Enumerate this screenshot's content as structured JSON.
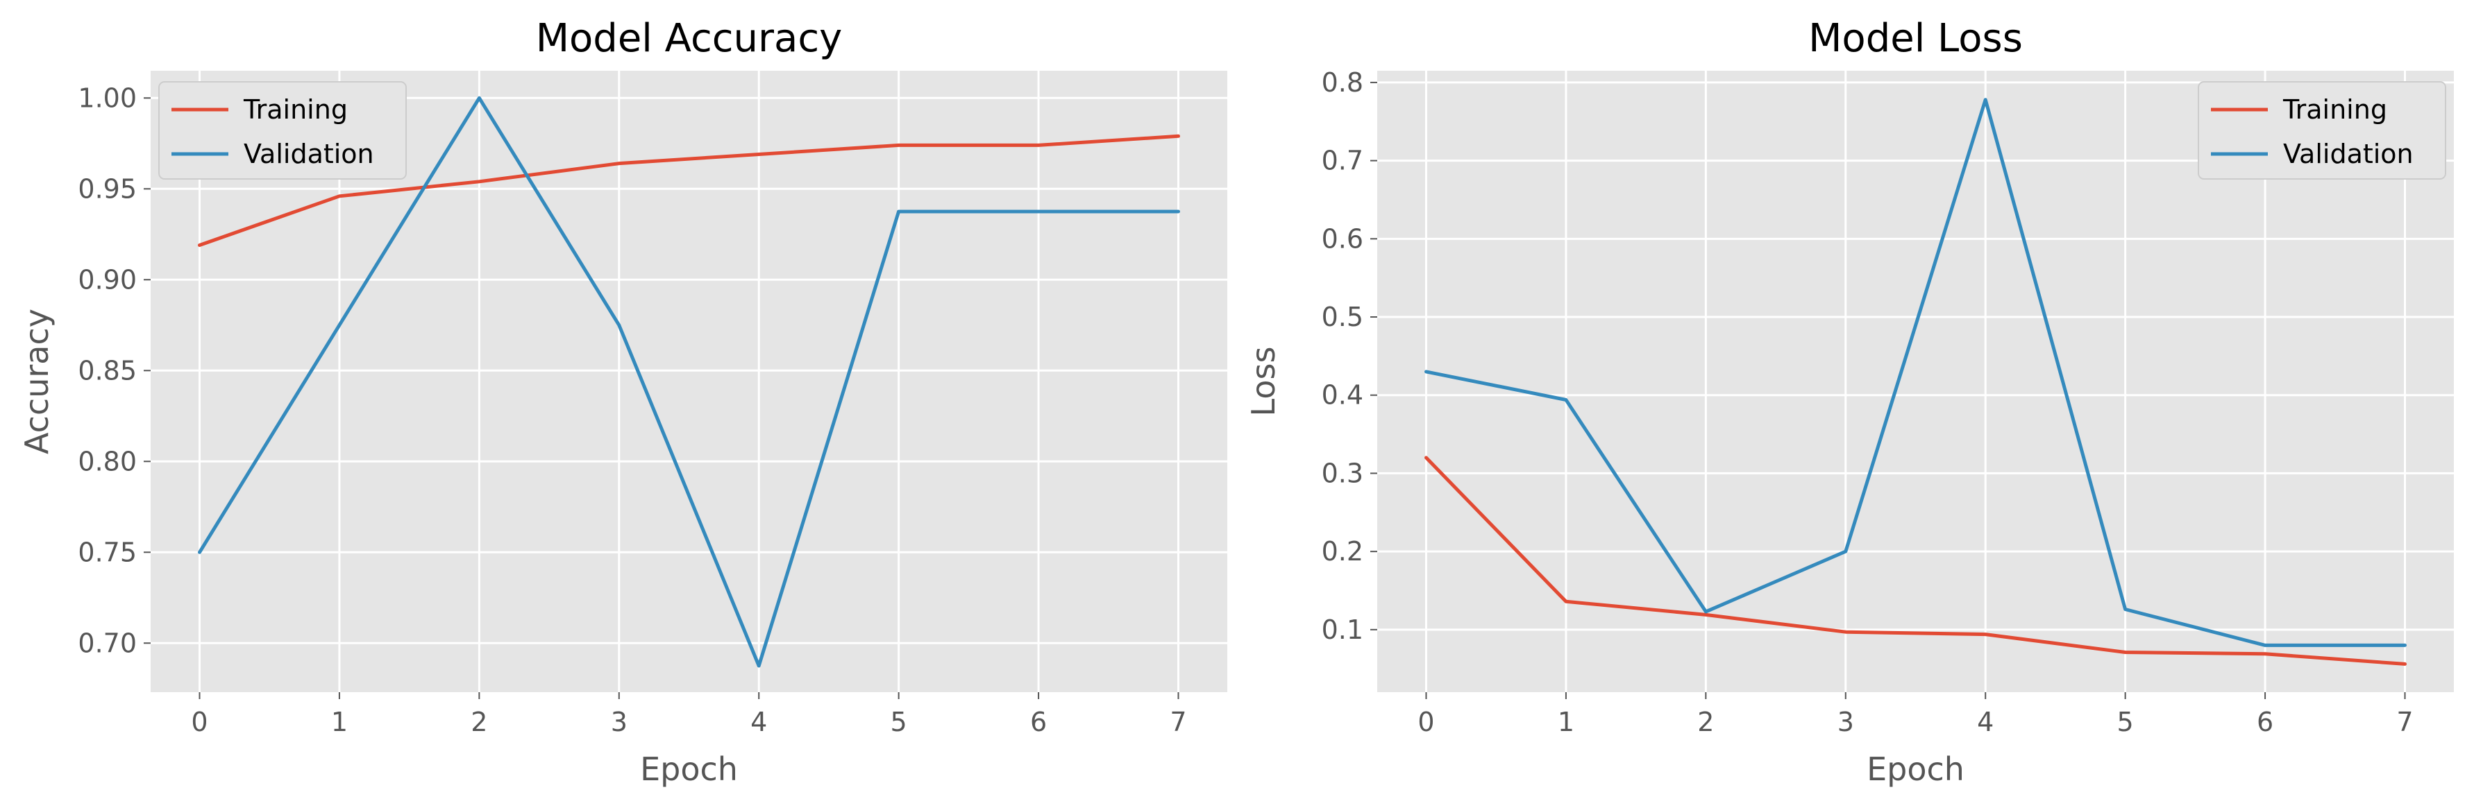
{
  "chart_data": [
    {
      "type": "line",
      "title": "Model Accuracy",
      "xlabel": "Epoch",
      "ylabel": "Accuracy",
      "x": [
        0,
        1,
        2,
        3,
        4,
        5,
        6,
        7
      ],
      "xticks": [
        "0",
        "1",
        "2",
        "3",
        "4",
        "5",
        "6",
        "7"
      ],
      "xlim": [
        -0.35,
        7.35
      ],
      "ylim": [
        0.673,
        1.015
      ],
      "yticks": [
        "0.70",
        "0.75",
        "0.80",
        "0.85",
        "0.90",
        "0.95",
        "1.00"
      ],
      "grid": true,
      "legend_position": "top-left",
      "series": [
        {
          "name": "Training",
          "color": "#e24a33",
          "values": [
            0.919,
            0.946,
            0.954,
            0.964,
            0.969,
            0.974,
            0.974,
            0.979
          ]
        },
        {
          "name": "Validation",
          "color": "#348abd",
          "values": [
            0.75,
            0.875,
            1.0,
            0.875,
            0.6875,
            0.9375,
            0.9375,
            0.9375
          ]
        }
      ]
    },
    {
      "type": "line",
      "title": "Model Loss",
      "xlabel": "Epoch",
      "ylabel": "Loss",
      "x": [
        0,
        1,
        2,
        3,
        4,
        5,
        6,
        7
      ],
      "xticks": [
        "0",
        "1",
        "2",
        "3",
        "4",
        "5",
        "6",
        "7"
      ],
      "xlim": [
        -0.35,
        7.35
      ],
      "ylim": [
        0.02,
        0.815
      ],
      "yticks": [
        "0.1",
        "0.2",
        "0.3",
        "0.4",
        "0.5",
        "0.6",
        "0.7",
        "0.8"
      ],
      "grid": true,
      "legend_position": "top-right",
      "series": [
        {
          "name": "Training",
          "color": "#e24a33",
          "values": [
            0.32,
            0.136,
            0.119,
            0.097,
            0.094,
            0.071,
            0.069,
            0.056
          ]
        },
        {
          "name": "Validation",
          "color": "#348abd",
          "values": [
            0.43,
            0.394,
            0.123,
            0.2,
            0.778,
            0.126,
            0.08,
            0.08
          ]
        }
      ]
    }
  ]
}
